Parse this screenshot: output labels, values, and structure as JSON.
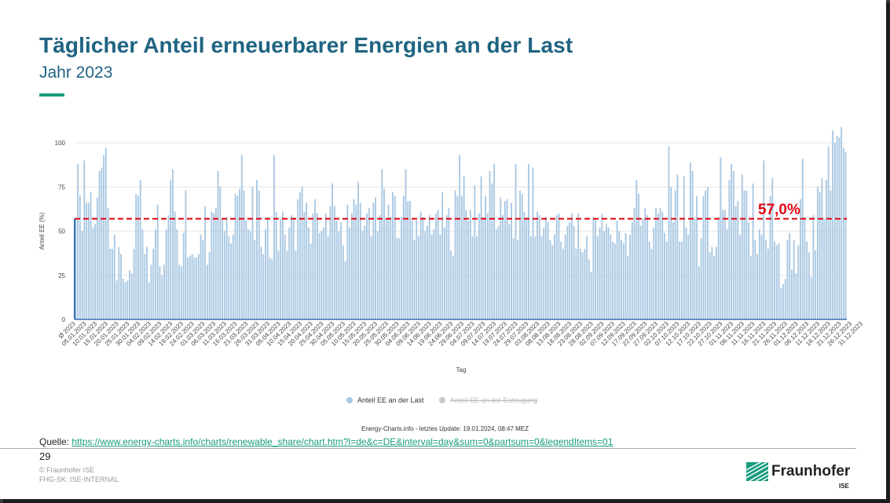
{
  "slide": {
    "title": "Täglicher Anteil erneuerbarer Energien an der Last",
    "subtitle": "Jahr 2023",
    "page_number": "29",
    "source_label": "Quelle:",
    "source_link": "https://www.energy-charts.info/charts/renewable_share/chart.htm?l=de&c=DE&interval=day&sum=0&partsum=0&legendItems=01",
    "copyright": "© Fraunhofer ISE",
    "classification": "FHG-SK: ISE-INTERNAL",
    "logo_text": "Fraunhofer",
    "logo_sub": "ISE"
  },
  "colors": {
    "title": "#1f6482",
    "accent": "#179c7d",
    "bar": "#a9c8e2",
    "avg_line": "#e30613",
    "axis": "#3b6fb6"
  },
  "chart_data": {
    "type": "bar",
    "title": "",
    "xlabel": "Tag",
    "ylabel": "Anteil EE (%)",
    "ylim": [
      0,
      110
    ],
    "yticks": [
      0,
      25,
      50,
      75,
      100
    ],
    "grid": true,
    "average": 57.0,
    "average_label": "57,0%",
    "legend": [
      {
        "name": "Anteil EE an der Last",
        "active": true,
        "color": "#a9c8e2"
      },
      {
        "name": "Anteil EE an der Erzeugung",
        "active": false,
        "color": "#c8c8c8"
      }
    ],
    "credits": "Energy-Charts.info - letztes Update: 19.01.2024, 08:47 MEZ",
    "x_labels": [
      "Ø 2023",
      "05.01.2023",
      "10.01.2023",
      "15.01.2023",
      "20.01.2023",
      "25.01.2023",
      "30.01.2023",
      "04.02.2023",
      "09.02.2023",
      "14.02.2023",
      "19.02.2023",
      "24.02.2023",
      "01.03.2023",
      "06.03.2023",
      "11.03.2023",
      "16.03.2023",
      "21.03.2023",
      "26.03.2023",
      "31.03.2023",
      "05.04.2023",
      "10.04.2023",
      "15.04.2023",
      "20.04.2023",
      "25.04.2023",
      "30.04.2023",
      "05.05.2023",
      "10.05.2023",
      "15.05.2023",
      "20.05.2023",
      "25.05.2023",
      "30.05.2023",
      "04.06.2023",
      "09.06.2023",
      "14.06.2023",
      "19.06.2023",
      "24.06.2023",
      "29.06.2023",
      "04.07.2023",
      "09.07.2023",
      "14.07.2023",
      "19.07.2023",
      "24.07.2023",
      "29.07.2023",
      "03.08.2023",
      "08.08.2023",
      "13.08.2023",
      "18.08.2023",
      "23.08.2023",
      "28.08.2023",
      "02.09.2023",
      "07.09.2023",
      "12.09.2023",
      "17.09.2023",
      "22.09.2023",
      "27.09.2023",
      "02.10.2023",
      "07.10.2023",
      "12.10.2023",
      "17.10.2023",
      "22.10.2023",
      "27.10.2023",
      "01.11.2023",
      "06.11.2023",
      "11.11.2023",
      "16.11.2023",
      "21.11.2023",
      "26.11.2023",
      "01.12.2023",
      "06.12.2023",
      "11.12.2023",
      "16.12.2023",
      "21.12.2023",
      "26.12.2023",
      "31.12.2023"
    ],
    "label_step_days": 5,
    "values": [
      57,
      88,
      70,
      50,
      90,
      66,
      66,
      72,
      52,
      54,
      69,
      84,
      86,
      93,
      97,
      63,
      40,
      40,
      48,
      22,
      41,
      37,
      23,
      21,
      22,
      28,
      26,
      40,
      71,
      70,
      79,
      51,
      37,
      41,
      21,
      31,
      40,
      51,
      65,
      30,
      25,
      31,
      51,
      59,
      79,
      85,
      61,
      51,
      31,
      30,
      49,
      73,
      35,
      36,
      37,
      35,
      35,
      37,
      48,
      45,
      64,
      31,
      38,
      61,
      60,
      63,
      84,
      75,
      57,
      50,
      58,
      47,
      43,
      48,
      71,
      70,
      74,
      93,
      73,
      56,
      51,
      50,
      75,
      45,
      79,
      73,
      41,
      37,
      51,
      58,
      35,
      34,
      93,
      61,
      39,
      57,
      61,
      48,
      39,
      52,
      59,
      58,
      39,
      68,
      72,
      75,
      61,
      66,
      52,
      43,
      60,
      68,
      60,
      49,
      50,
      52,
      60,
      47,
      64,
      77,
      64,
      56,
      50,
      55,
      42,
      33,
      65,
      52,
      60,
      68,
      65,
      78,
      66,
      50,
      53,
      60,
      63,
      47,
      66,
      69,
      50,
      59,
      85,
      74,
      57,
      65,
      58,
      72,
      70,
      46,
      46,
      58,
      70,
      85,
      67,
      67,
      56,
      45,
      56,
      47,
      61,
      58,
      50,
      53,
      59,
      48,
      51,
      60,
      62,
      48,
      72,
      52,
      59,
      63,
      39,
      36,
      73,
      70,
      93,
      70,
      81,
      62,
      56,
      62,
      47,
      76,
      47,
      60,
      81,
      58,
      70,
      60,
      84,
      77,
      88,
      51,
      53,
      69,
      59,
      67,
      68,
      54,
      66,
      46,
      88,
      45,
      73,
      71,
      61,
      58,
      88,
      47,
      86,
      47,
      61,
      59,
      47,
      52,
      58,
      55,
      45,
      42,
      48,
      59,
      60,
      44,
      40,
      48,
      53,
      55,
      60,
      53,
      40,
      60,
      40,
      38,
      40,
      47,
      34,
      27,
      58,
      57,
      47,
      52,
      60,
      50,
      54,
      52,
      48,
      44,
      43,
      56,
      50,
      45,
      43,
      49,
      36,
      48,
      55,
      63,
      79,
      71,
      53,
      57,
      63,
      59,
      44,
      40,
      52,
      63,
      60,
      63,
      61,
      49,
      44,
      98,
      75,
      55,
      73,
      82,
      44,
      44,
      81,
      52,
      48,
      89,
      84,
      57,
      70,
      30,
      46,
      70,
      73,
      75,
      38,
      41,
      36,
      41,
      58,
      92,
      62,
      62,
      51,
      79,
      88,
      84,
      64,
      67,
      48,
      82,
      73,
      73,
      55,
      36,
      77,
      45,
      37,
      51,
      48,
      90,
      45,
      40,
      70,
      80,
      44,
      42,
      43,
      18,
      20,
      23,
      45,
      49,
      28,
      45,
      26,
      42,
      68,
      91,
      58,
      44,
      38,
      24,
      59,
      39,
      75,
      72,
      80,
      57,
      79,
      98,
      73,
      107,
      100,
      104,
      103,
      109,
      97,
      95
    ]
  }
}
